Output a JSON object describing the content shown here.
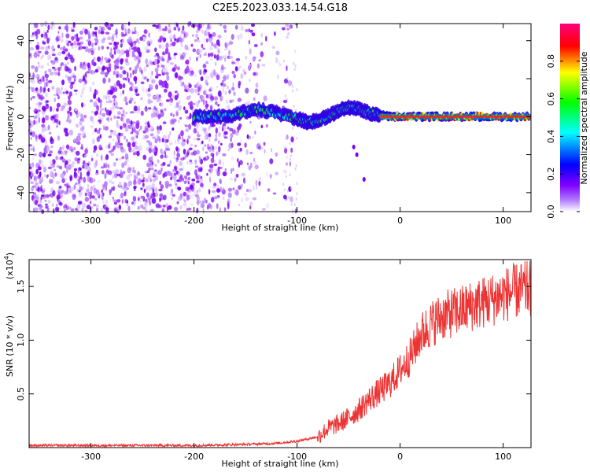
{
  "figure": {
    "title": "C2E5.2023.033.14.54.G18"
  },
  "chart_data": [
    {
      "type": "heatmap",
      "title": "C2E5.2023.033.14.54.G18",
      "xlabel": "Height of straight line (km)",
      "ylabel": "Frequency (Hz)",
      "xlim": [
        -360,
        127
      ],
      "ylim": [
        -50,
        49
      ],
      "x_ticks": [
        -300,
        -200,
        -100,
        0,
        100
      ],
      "y_ticks": [
        -40,
        -20,
        0,
        20,
        40
      ],
      "grid": false,
      "colorbar": {
        "label": "Normalized spectral amplitude",
        "range": [
          0.0,
          1.0
        ],
        "ticks": [
          "0.0",
          "0.2",
          "0.4",
          "0.6",
          "0.8"
        ],
        "colors": [
          "#ffffff",
          "#8000ff",
          "#0000ff",
          "#00ffff",
          "#00ff00",
          "#ffff00",
          "#ff0000",
          "#ff0080"
        ]
      },
      "description_points": {
        "noise_region_x": [
          -360,
          -130
        ],
        "signal_trace": {
          "x": [
            -200,
            -180,
            -160,
            -140,
            -120,
            -100,
            -90,
            -80,
            -70,
            -60,
            -50,
            -40,
            -30,
            -20,
            -10,
            0,
            20,
            40,
            60,
            80,
            100,
            127
          ],
          "y": [
            0,
            0,
            1,
            4,
            2,
            -1,
            -3,
            -2,
            0,
            3,
            5,
            4,
            2,
            1,
            0,
            0,
            0,
            0,
            0,
            0,
            0,
            0
          ]
        }
      }
    },
    {
      "type": "line",
      "xlabel": "Height of straight line (km)",
      "ylabel": "SNR (10 * v/v)",
      "y_multiplier_label": "(x10",
      "y_multiplier_exp": "4",
      "y_multiplier_close": ")",
      "xlim": [
        -360,
        127
      ],
      "ylim": [
        0,
        1.75
      ],
      "x_ticks": [
        -300,
        -200,
        -100,
        0,
        100
      ],
      "y_ticks": [
        "0.5",
        "1.0",
        "1.5"
      ],
      "grid": false,
      "series": [
        {
          "color": "#ee3333",
          "x": [
            -360,
            -300,
            -250,
            -200,
            -150,
            -120,
            -100,
            -90,
            -80,
            -70,
            -60,
            -50,
            -40,
            -30,
            -20,
            -10,
            0,
            10,
            20,
            30,
            40,
            50,
            60,
            70,
            80,
            90,
            100,
            110,
            120,
            127
          ],
          "y": [
            0.02,
            0.02,
            0.02,
            0.02,
            0.03,
            0.04,
            0.06,
            0.08,
            0.1,
            0.18,
            0.22,
            0.28,
            0.35,
            0.45,
            0.52,
            0.6,
            0.72,
            0.85,
            1.05,
            1.15,
            1.22,
            1.25,
            1.28,
            1.32,
            1.35,
            1.38,
            1.42,
            1.45,
            1.47,
            1.48
          ]
        }
      ]
    }
  ]
}
